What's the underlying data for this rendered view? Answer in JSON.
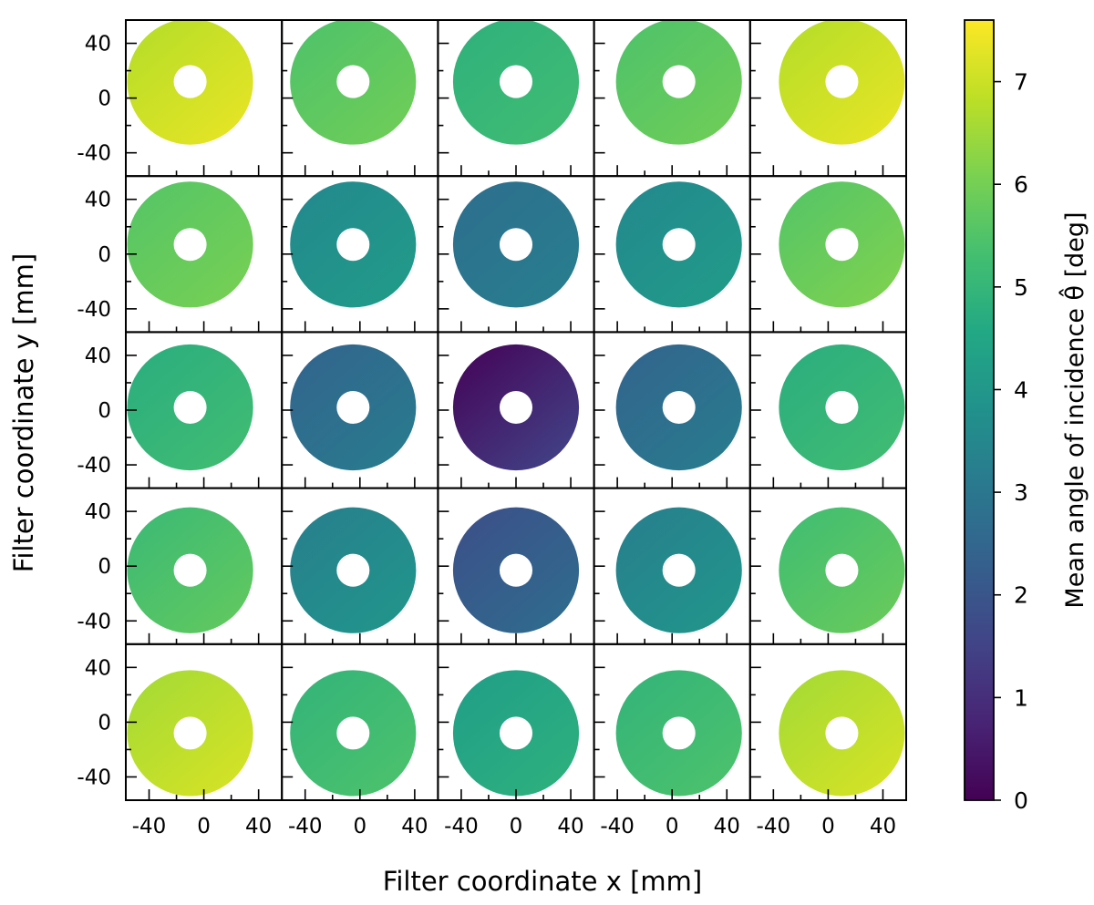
{
  "chart_data": {
    "type": "heatmap",
    "description_layout": "5x5 grid of annular filter maps",
    "xlabel": "Filter coordinate  x [mm]",
    "ylabel": "Filter coordinate  y [mm]",
    "colorbar_label": "Mean angle of incidence  θ̂ [deg]",
    "colormap": "viridis",
    "clim": [
      0,
      7.6
    ],
    "colorbar_ticks": [
      0,
      1,
      2,
      3,
      4,
      5,
      6,
      7
    ],
    "xlim": [
      -57,
      57
    ],
    "ylim": [
      -57,
      57
    ],
    "x_ticks": [
      -40,
      0,
      40
    ],
    "y_ticks": [
      40,
      0,
      -40
    ],
    "annulus_outer_radius_mm": 46,
    "annulus_inner_radius_mm": 12,
    "panels": [
      {
        "row": 1,
        "col": 1,
        "center_mm": [
          -10,
          12
        ],
        "mean_deg": 7.0,
        "gradient_deg": [
          6.8,
          7.3
        ]
      },
      {
        "row": 1,
        "col": 2,
        "center_mm": [
          -5,
          12
        ],
        "mean_deg": 5.7,
        "gradient_deg": [
          5.5,
          5.9
        ]
      },
      {
        "row": 1,
        "col": 3,
        "center_mm": [
          0,
          12
        ],
        "mean_deg": 5.0,
        "gradient_deg": [
          4.9,
          5.2
        ]
      },
      {
        "row": 1,
        "col": 4,
        "center_mm": [
          5,
          12
        ],
        "mean_deg": 5.7,
        "gradient_deg": [
          5.5,
          5.9
        ]
      },
      {
        "row": 1,
        "col": 5,
        "center_mm": [
          10,
          12
        ],
        "mean_deg": 7.0,
        "gradient_deg": [
          6.8,
          7.3
        ]
      },
      {
        "row": 2,
        "col": 1,
        "center_mm": [
          -10,
          7
        ],
        "mean_deg": 5.8,
        "gradient_deg": [
          5.6,
          6.0
        ]
      },
      {
        "row": 2,
        "col": 2,
        "center_mm": [
          -5,
          7
        ],
        "mean_deg": 3.8,
        "gradient_deg": [
          3.6,
          4.1
        ]
      },
      {
        "row": 2,
        "col": 3,
        "center_mm": [
          0,
          7
        ],
        "mean_deg": 3.0,
        "gradient_deg": [
          2.8,
          3.2
        ]
      },
      {
        "row": 2,
        "col": 4,
        "center_mm": [
          5,
          7
        ],
        "mean_deg": 3.8,
        "gradient_deg": [
          3.6,
          4.1
        ]
      },
      {
        "row": 2,
        "col": 5,
        "center_mm": [
          10,
          7
        ],
        "mean_deg": 5.9,
        "gradient_deg": [
          5.6,
          6.1
        ]
      },
      {
        "row": 3,
        "col": 1,
        "center_mm": [
          -10,
          2
        ],
        "mean_deg": 5.0,
        "gradient_deg": [
          4.8,
          5.2
        ]
      },
      {
        "row": 3,
        "col": 2,
        "center_mm": [
          -5,
          2
        ],
        "mean_deg": 2.8,
        "gradient_deg": [
          2.5,
          3.1
        ]
      },
      {
        "row": 3,
        "col": 3,
        "center_mm": [
          0,
          2
        ],
        "mean_deg": 0.8,
        "gradient_deg": [
          0.2,
          1.4
        ]
      },
      {
        "row": 3,
        "col": 4,
        "center_mm": [
          5,
          2
        ],
        "mean_deg": 2.8,
        "gradient_deg": [
          2.5,
          3.1
        ]
      },
      {
        "row": 3,
        "col": 5,
        "center_mm": [
          10,
          2
        ],
        "mean_deg": 5.0,
        "gradient_deg": [
          4.8,
          5.2
        ]
      },
      {
        "row": 4,
        "col": 1,
        "center_mm": [
          -10,
          -3
        ],
        "mean_deg": 5.4,
        "gradient_deg": [
          5.2,
          5.7
        ]
      },
      {
        "row": 4,
        "col": 2,
        "center_mm": [
          -5,
          -3
        ],
        "mean_deg": 3.6,
        "gradient_deg": [
          3.3,
          3.9
        ]
      },
      {
        "row": 4,
        "col": 3,
        "center_mm": [
          0,
          -3
        ],
        "mean_deg": 2.3,
        "gradient_deg": [
          1.9,
          2.6
        ]
      },
      {
        "row": 4,
        "col": 4,
        "center_mm": [
          5,
          -3
        ],
        "mean_deg": 3.6,
        "gradient_deg": [
          3.3,
          3.9
        ]
      },
      {
        "row": 4,
        "col": 5,
        "center_mm": [
          10,
          -3
        ],
        "mean_deg": 5.5,
        "gradient_deg": [
          5.3,
          5.8
        ]
      },
      {
        "row": 5,
        "col": 1,
        "center_mm": [
          -10,
          -8
        ],
        "mean_deg": 6.8,
        "gradient_deg": [
          6.6,
          7.1
        ]
      },
      {
        "row": 5,
        "col": 2,
        "center_mm": [
          -5,
          -8
        ],
        "mean_deg": 5.2,
        "gradient_deg": [
          5.0,
          5.4
        ]
      },
      {
        "row": 5,
        "col": 3,
        "center_mm": [
          0,
          -8
        ],
        "mean_deg": 4.5,
        "gradient_deg": [
          4.3,
          4.8
        ]
      },
      {
        "row": 5,
        "col": 4,
        "center_mm": [
          5,
          -8
        ],
        "mean_deg": 5.2,
        "gradient_deg": [
          5.0,
          5.4
        ]
      },
      {
        "row": 5,
        "col": 5,
        "center_mm": [
          10,
          -8
        ],
        "mean_deg": 6.8,
        "gradient_deg": [
          6.6,
          7.1
        ]
      }
    ]
  }
}
